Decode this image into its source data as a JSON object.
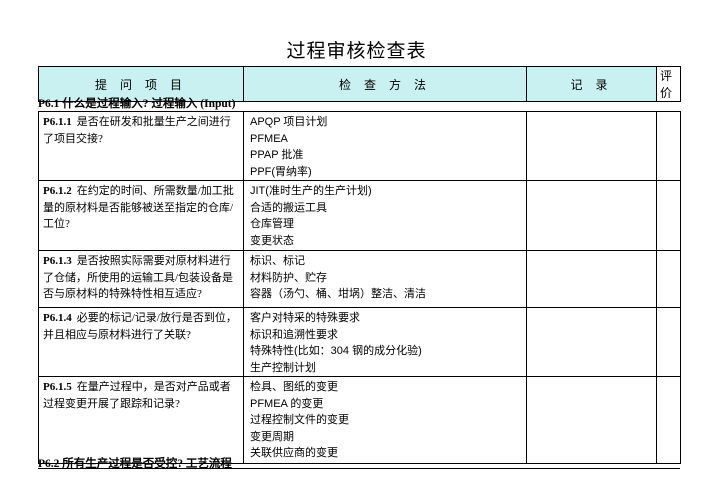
{
  "title": "过程审核检查表",
  "colors": {
    "header_bg": "#C9F1F1",
    "border": "#000000",
    "text": "#000000",
    "page_bg": "#FFFFFF"
  },
  "header": {
    "question_items": "提 问 项 目",
    "check_methods": "检 查 方 法",
    "records": "记 录",
    "evaluation": "评价"
  },
  "sections": {
    "p61_heading": "P6.1 什么是过程输入? 过程输入 (Input)",
    "p62_heading": "P6.2 所有生产过程是否受控? 工艺流程"
  },
  "rows": [
    {
      "id": "P6.1.1",
      "question": "是否在研发和批量生产之间进行了项目交接?",
      "methods": [
        "APQP 项目计划",
        "PFMEA",
        "PPAP 批准",
        "PPF(胃纳率)"
      ],
      "record": "",
      "evaluation": ""
    },
    {
      "id": "P6.1.2",
      "question": "在约定的时间、所需数量/加工批量的原材料是否能够被送至指定的仓库/工位?",
      "methods": [
        "JIT(准时生产的生产计划)",
        "合适的搬运工具",
        "仓库管理",
        "变更状态"
      ],
      "record": "",
      "evaluation": ""
    },
    {
      "id": "P6.1.3",
      "question": "是否按照实际需要对原材料进行了仓储，所使用的运输工具/包装设备是否与原材料的特殊特性相互适应?",
      "methods": [
        "标识、标记",
        "材料防护、贮存",
        "容器（汤勺、桶、坩埚）整洁、清洁"
      ],
      "record": "",
      "evaluation": ""
    },
    {
      "id": "P6.1.4",
      "question": "必要的标记/记录/放行是否到位，并且相应与原材料进行了关联?",
      "methods": [
        "客户对特采的特殊要求",
        "标识和追溯性要求",
        "特殊特性(比如：304 钢的成分化验)",
        "生产控制计划"
      ],
      "record": "",
      "evaluation": ""
    },
    {
      "id": "P6.1.5",
      "question": "在量产过程中，是否对产品或者过程变更开展了跟踪和记录?",
      "methods": [
        "检具、图纸的变更",
        "PFMEA 的变更",
        "过程控制文件的变更",
        "变更周期",
        "关联供应商的变更"
      ],
      "record": "",
      "evaluation": ""
    }
  ]
}
